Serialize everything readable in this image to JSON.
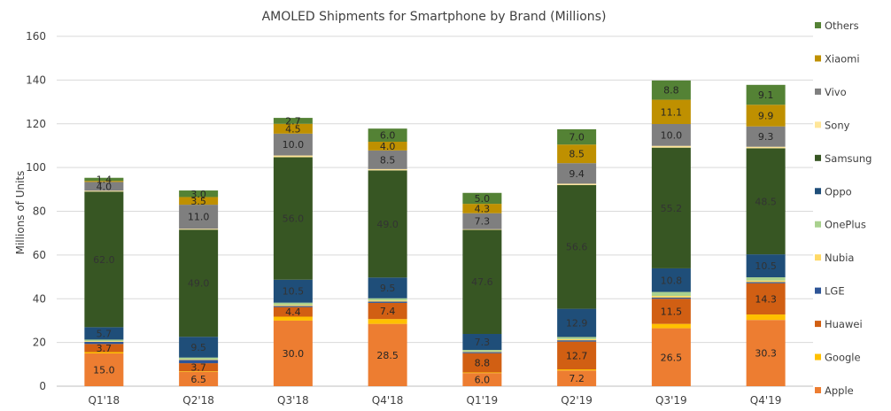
{
  "chart_data": {
    "type": "bar",
    "stacked": true,
    "title": "AMOLED Shipments for Smartphone by Brand (Millions)",
    "xlabel": "",
    "ylabel": "Millions of Units",
    "ylim": [
      0,
      160
    ],
    "yticks": [
      0,
      20,
      40,
      60,
      80,
      100,
      120,
      140,
      160
    ],
    "grid": true,
    "legend_position": "right",
    "categories": [
      "Q1'18",
      "Q2'18",
      "Q3'18",
      "Q4'18",
      "Q1'19",
      "Q2'19",
      "Q3'19",
      "Q4'19"
    ],
    "series": [
      {
        "name": "Apple",
        "color": "#ED7D31",
        "values": [
          15.0,
          6.5,
          30.0,
          28.5,
          6.0,
          7.2,
          26.5,
          30.3
        ],
        "labels": [
          "15.0",
          "6.5",
          "30.0",
          "28.5",
          "6.0",
          "7.2",
          "26.5",
          "30.3"
        ]
      },
      {
        "name": "Google",
        "color": "#FFC000",
        "values": [
          0.6,
          0.3,
          1.8,
          2.2,
          0.3,
          0.5,
          2.0,
          2.5
        ],
        "labels": [
          "",
          "",
          "",
          "",
          "",
          "",
          "",
          ""
        ]
      },
      {
        "name": "Huawei",
        "color": "#D15F13",
        "values": [
          3.7,
          3.7,
          4.4,
          7.4,
          8.8,
          12.7,
          11.5,
          14.3
        ],
        "labels": [
          "3.7",
          "3.7",
          "4.4",
          "7.4",
          "8.8",
          "12.7",
          "11.5",
          "14.3"
        ]
      },
      {
        "name": "LGE",
        "color": "#2E5597",
        "values": [
          1.0,
          1.5,
          0.5,
          0.6,
          0.5,
          0.6,
          0.5,
          0.5
        ],
        "labels": [
          "",
          "",
          "",
          "",
          "",
          "",
          "",
          ""
        ]
      },
      {
        "name": "Nubia",
        "color": "#FFD966",
        "values": [
          0.3,
          0.3,
          0.5,
          0.5,
          0.3,
          0.5,
          0.8,
          0.7
        ],
        "labels": [
          "",
          "",
          "",
          "",
          "",
          "",
          "",
          ""
        ]
      },
      {
        "name": "OnePlus",
        "color": "#A9D18E",
        "values": [
          0.7,
          0.8,
          1.0,
          1.0,
          0.7,
          1.0,
          1.8,
          1.5
        ],
        "labels": [
          "",
          "",
          "",
          "",
          "",
          "",
          "",
          ""
        ]
      },
      {
        "name": "Oppo",
        "color": "#1F4E79",
        "values": [
          5.7,
          9.5,
          10.5,
          9.5,
          7.3,
          12.9,
          10.8,
          10.5
        ],
        "labels": [
          "5.7",
          "9.5",
          "10.5",
          "9.5",
          "7.3",
          "12.9",
          "10.8",
          "10.5"
        ]
      },
      {
        "name": "Samsung",
        "color": "#375623",
        "values": [
          62.0,
          49.0,
          56.0,
          49.0,
          47.6,
          56.6,
          55.2,
          48.5
        ],
        "labels": [
          "62.0",
          "49.0",
          "56.0",
          "49.0",
          "47.6",
          "56.6",
          "55.2",
          "48.5"
        ]
      },
      {
        "name": "Sony",
        "color": "#FFE699",
        "values": [
          0.4,
          0.4,
          0.8,
          0.6,
          0.3,
          0.6,
          0.8,
          0.7
        ],
        "labels": [
          "",
          "",
          "",
          "",
          "",
          "",
          "",
          ""
        ]
      },
      {
        "name": "Vivo",
        "color": "#7F7F7F",
        "values": [
          4.0,
          11.0,
          10.0,
          8.5,
          7.3,
          9.4,
          10.0,
          9.3
        ],
        "labels": [
          "4.0",
          "11.0",
          "10.0",
          "8.5",
          "7.3",
          "9.4",
          "10.0",
          "9.3"
        ]
      },
      {
        "name": "Xiaomi",
        "color": "#BF9000",
        "values": [
          0.5,
          3.5,
          4.5,
          4.0,
          4.3,
          8.5,
          11.1,
          9.9
        ],
        "labels": [
          "",
          "3.5",
          "4.5",
          "4.0",
          "4.3",
          "8.5",
          "11.1",
          "9.9"
        ]
      },
      {
        "name": "Others",
        "color": "#548235",
        "values": [
          1.4,
          3.0,
          2.7,
          6.0,
          5.0,
          7.0,
          8.8,
          9.1
        ],
        "labels": [
          "1.4",
          "3.0",
          "2.7",
          "6.0",
          "5.0",
          "7.0",
          "8.8",
          "9.1"
        ]
      }
    ]
  }
}
